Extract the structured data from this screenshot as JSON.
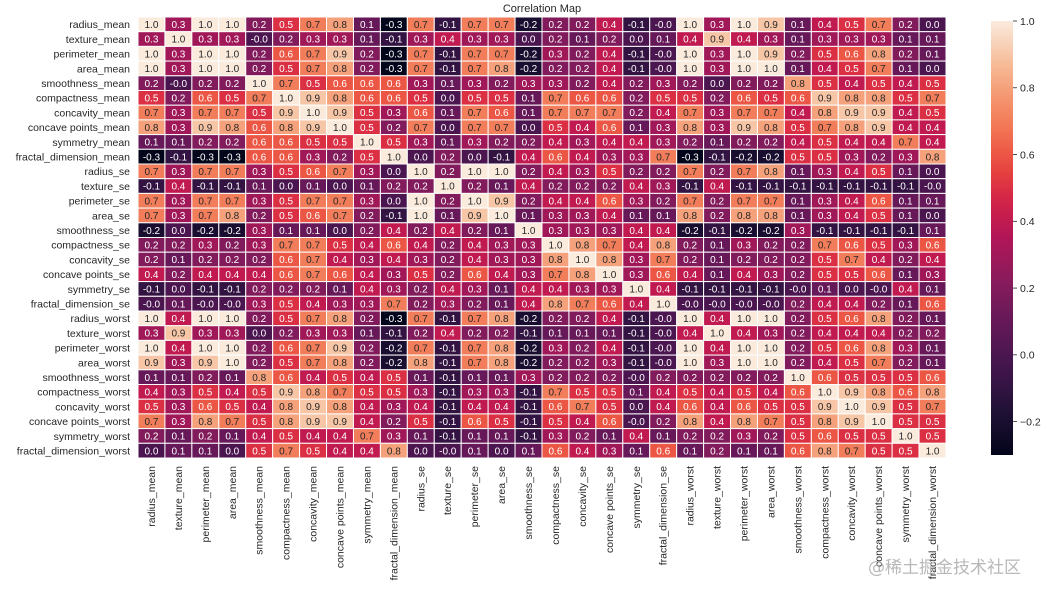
{
  "watermark": "@稀土掘金技术社区",
  "chart_data": {
    "type": "heatmap",
    "title": "Correlation Map",
    "xlabel": "",
    "ylabel": "",
    "annotate": true,
    "value_format": "0.1f",
    "colormap": "rocket",
    "colorbar": {
      "range": [
        -0.3,
        1.0
      ],
      "ticks": [
        -0.2,
        0.0,
        0.2,
        0.4,
        0.6,
        0.8,
        1.0
      ],
      "tick_labels": [
        "−0.2",
        "0.0",
        "0.2",
        "0.4",
        "0.6",
        "0.8",
        "1.0"
      ],
      "placement": "right"
    },
    "labels": [
      "radius_mean",
      "texture_mean",
      "perimeter_mean",
      "area_mean",
      "smoothness_mean",
      "compactness_mean",
      "concavity_mean",
      "concave points_mean",
      "symmetry_mean",
      "fractal_dimension_mean",
      "radius_se",
      "texture_se",
      "perimeter_se",
      "area_se",
      "smoothness_se",
      "compactness_se",
      "concavity_se",
      "concave points_se",
      "symmetry_se",
      "fractal_dimension_se",
      "radius_worst",
      "texture_worst",
      "perimeter_worst",
      "area_worst",
      "smoothness_worst",
      "compactness_worst",
      "concavity_worst",
      "concave points_worst",
      "symmetry_worst",
      "fractal_dimension_worst"
    ],
    "matrix": [
      [
        1.0,
        0.3,
        1.0,
        1.0,
        0.2,
        0.5,
        0.7,
        0.8,
        0.1,
        -0.3,
        0.7,
        -0.1,
        0.7,
        0.7,
        -0.2,
        0.2,
        0.2,
        0.4,
        -0.1,
        -0.0,
        1.0,
        0.3,
        1.0,
        0.9,
        0.1,
        0.4,
        0.5,
        0.7,
        0.2,
        0.0
      ],
      [
        0.3,
        1.0,
        0.3,
        0.3,
        -0.0,
        0.2,
        0.3,
        0.3,
        0.1,
        -0.1,
        0.3,
        0.4,
        0.3,
        0.3,
        0.0,
        0.2,
        0.1,
        0.2,
        0.0,
        0.1,
        0.4,
        0.9,
        0.4,
        0.3,
        0.1,
        0.3,
        0.3,
        0.3,
        0.1,
        0.1
      ],
      [
        1.0,
        0.3,
        1.0,
        1.0,
        0.2,
        0.6,
        0.7,
        0.9,
        0.2,
        -0.3,
        0.7,
        -0.1,
        0.7,
        0.7,
        -0.2,
        0.3,
        0.2,
        0.4,
        -0.1,
        -0.0,
        1.0,
        0.3,
        1.0,
        0.9,
        0.2,
        0.5,
        0.6,
        0.8,
        0.2,
        0.1
      ],
      [
        1.0,
        0.3,
        1.0,
        1.0,
        0.2,
        0.5,
        0.7,
        0.8,
        0.2,
        -0.3,
        0.7,
        -0.1,
        0.7,
        0.8,
        -0.2,
        0.2,
        0.2,
        0.4,
        -0.1,
        -0.0,
        1.0,
        0.3,
        1.0,
        1.0,
        0.1,
        0.4,
        0.5,
        0.7,
        0.1,
        0.0
      ],
      [
        0.2,
        -0.0,
        0.2,
        0.2,
        1.0,
        0.7,
        0.5,
        0.6,
        0.6,
        0.6,
        0.3,
        0.1,
        0.3,
        0.2,
        0.3,
        0.3,
        0.2,
        0.4,
        0.2,
        0.3,
        0.2,
        0.0,
        0.2,
        0.2,
        0.8,
        0.5,
        0.4,
        0.5,
        0.4,
        0.5
      ],
      [
        0.5,
        0.2,
        0.6,
        0.5,
        0.7,
        1.0,
        0.9,
        0.8,
        0.6,
        0.6,
        0.5,
        0.0,
        0.5,
        0.5,
        0.1,
        0.7,
        0.6,
        0.6,
        0.2,
        0.5,
        0.5,
        0.2,
        0.6,
        0.5,
        0.6,
        0.9,
        0.8,
        0.8,
        0.5,
        0.7
      ],
      [
        0.7,
        0.3,
        0.7,
        0.7,
        0.5,
        0.9,
        1.0,
        0.9,
        0.5,
        0.3,
        0.6,
        0.1,
        0.7,
        0.6,
        0.1,
        0.7,
        0.7,
        0.7,
        0.2,
        0.4,
        0.7,
        0.3,
        0.7,
        0.7,
        0.4,
        0.8,
        0.9,
        0.9,
        0.4,
        0.5
      ],
      [
        0.8,
        0.3,
        0.9,
        0.8,
        0.6,
        0.8,
        0.9,
        1.0,
        0.5,
        0.2,
        0.7,
        0.0,
        0.7,
        0.7,
        0.0,
        0.5,
        0.4,
        0.6,
        0.1,
        0.3,
        0.8,
        0.3,
        0.9,
        0.8,
        0.5,
        0.7,
        0.8,
        0.9,
        0.4,
        0.4
      ],
      [
        0.1,
        0.1,
        0.2,
        0.2,
        0.6,
        0.6,
        0.5,
        0.5,
        1.0,
        0.5,
        0.3,
        0.1,
        0.3,
        0.2,
        0.2,
        0.4,
        0.3,
        0.4,
        0.4,
        0.3,
        0.2,
        0.1,
        0.2,
        0.2,
        0.4,
        0.5,
        0.4,
        0.4,
        0.7,
        0.4
      ],
      [
        -0.3,
        -0.1,
        -0.3,
        -0.3,
        0.6,
        0.6,
        0.3,
        0.2,
        0.5,
        1.0,
        0.0,
        0.2,
        0.0,
        -0.1,
        0.4,
        0.6,
        0.4,
        0.3,
        0.3,
        0.7,
        -0.3,
        -0.1,
        -0.2,
        -0.2,
        0.5,
        0.5,
        0.3,
        0.2,
        0.3,
        0.8
      ],
      [
        0.7,
        0.3,
        0.7,
        0.7,
        0.3,
        0.5,
        0.6,
        0.7,
        0.3,
        0.0,
        1.0,
        0.2,
        1.0,
        1.0,
        0.2,
        0.4,
        0.3,
        0.5,
        0.2,
        0.2,
        0.7,
        0.2,
        0.7,
        0.8,
        0.1,
        0.3,
        0.4,
        0.5,
        0.1,
        0.0
      ],
      [
        -0.1,
        0.4,
        -0.1,
        -0.1,
        0.1,
        0.0,
        0.1,
        0.0,
        0.1,
        0.2,
        0.2,
        1.0,
        0.2,
        0.1,
        0.4,
        0.2,
        0.2,
        0.2,
        0.4,
        0.3,
        -0.1,
        0.4,
        -0.1,
        -0.1,
        -0.1,
        -0.1,
        -0.1,
        -0.1,
        -0.1,
        -0.0
      ],
      [
        0.7,
        0.3,
        0.7,
        0.7,
        0.3,
        0.5,
        0.7,
        0.7,
        0.3,
        0.0,
        1.0,
        0.2,
        1.0,
        0.9,
        0.2,
        0.4,
        0.4,
        0.6,
        0.3,
        0.2,
        0.7,
        0.2,
        0.7,
        0.7,
        0.1,
        0.3,
        0.4,
        0.6,
        0.1,
        0.1
      ],
      [
        0.7,
        0.3,
        0.7,
        0.8,
        0.2,
        0.5,
        0.6,
        0.7,
        0.2,
        -0.1,
        1.0,
        0.1,
        0.9,
        1.0,
        0.1,
        0.3,
        0.3,
        0.4,
        0.1,
        0.1,
        0.8,
        0.2,
        0.8,
        0.8,
        0.1,
        0.3,
        0.4,
        0.5,
        0.1,
        0.0
      ],
      [
        -0.2,
        0.0,
        -0.2,
        -0.2,
        0.3,
        0.1,
        0.1,
        0.0,
        0.2,
        0.4,
        0.2,
        0.4,
        0.2,
        0.1,
        1.0,
        0.3,
        0.3,
        0.3,
        0.4,
        0.4,
        -0.2,
        -0.1,
        -0.2,
        -0.2,
        0.3,
        -0.1,
        -0.1,
        -0.1,
        -0.1,
        0.1
      ],
      [
        0.2,
        0.2,
        0.3,
        0.2,
        0.3,
        0.7,
        0.7,
        0.5,
        0.4,
        0.6,
        0.4,
        0.2,
        0.4,
        0.3,
        0.3,
        1.0,
        0.8,
        0.7,
        0.4,
        0.8,
        0.2,
        0.1,
        0.3,
        0.2,
        0.2,
        0.7,
        0.6,
        0.5,
        0.3,
        0.6
      ],
      [
        0.2,
        0.1,
        0.2,
        0.2,
        0.2,
        0.6,
        0.7,
        0.4,
        0.3,
        0.4,
        0.3,
        0.2,
        0.4,
        0.3,
        0.3,
        0.8,
        1.0,
        0.8,
        0.3,
        0.7,
        0.2,
        0.1,
        0.2,
        0.2,
        0.2,
        0.5,
        0.7,
        0.4,
        0.2,
        0.4
      ],
      [
        0.4,
        0.2,
        0.4,
        0.4,
        0.4,
        0.6,
        0.7,
        0.6,
        0.4,
        0.3,
        0.5,
        0.2,
        0.6,
        0.4,
        0.3,
        0.7,
        0.8,
        1.0,
        0.3,
        0.6,
        0.4,
        0.1,
        0.4,
        0.3,
        0.2,
        0.5,
        0.5,
        0.6,
        0.1,
        0.3
      ],
      [
        -0.1,
        0.0,
        -0.1,
        -0.1,
        0.2,
        0.2,
        0.2,
        0.1,
        0.4,
        0.3,
        0.2,
        0.4,
        0.3,
        0.1,
        0.4,
        0.4,
        0.3,
        0.3,
        1.0,
        0.4,
        -0.1,
        -0.1,
        -0.1,
        -0.1,
        -0.0,
        0.1,
        0.0,
        -0.0,
        0.4,
        0.1
      ],
      [
        -0.0,
        0.1,
        -0.0,
        -0.0,
        0.3,
        0.5,
        0.4,
        0.3,
        0.3,
        0.7,
        0.2,
        0.3,
        0.2,
        0.1,
        0.4,
        0.8,
        0.7,
        0.6,
        0.4,
        1.0,
        -0.0,
        -0.0,
        -0.0,
        -0.0,
        0.2,
        0.4,
        0.4,
        0.2,
        0.1,
        0.6
      ],
      [
        1.0,
        0.4,
        1.0,
        1.0,
        0.2,
        0.5,
        0.7,
        0.8,
        0.2,
        -0.3,
        0.7,
        -0.1,
        0.7,
        0.8,
        -0.2,
        0.2,
        0.2,
        0.4,
        -0.1,
        -0.0,
        1.0,
        0.4,
        1.0,
        1.0,
        0.2,
        0.5,
        0.6,
        0.8,
        0.2,
        0.1
      ],
      [
        0.3,
        0.9,
        0.3,
        0.3,
        0.0,
        0.2,
        0.3,
        0.3,
        0.1,
        -0.1,
        0.2,
        0.4,
        0.2,
        0.2,
        -0.1,
        0.1,
        0.1,
        0.1,
        -0.1,
        -0.0,
        0.4,
        1.0,
        0.4,
        0.3,
        0.2,
        0.4,
        0.4,
        0.4,
        0.2,
        0.2
      ],
      [
        1.0,
        0.4,
        1.0,
        1.0,
        0.2,
        0.6,
        0.7,
        0.9,
        0.2,
        -0.2,
        0.7,
        -0.1,
        0.7,
        0.8,
        -0.2,
        0.3,
        0.2,
        0.4,
        -0.1,
        -0.0,
        1.0,
        0.4,
        1.0,
        1.0,
        0.2,
        0.5,
        0.6,
        0.8,
        0.3,
        0.1
      ],
      [
        0.9,
        0.3,
        0.9,
        1.0,
        0.2,
        0.5,
        0.7,
        0.8,
        0.2,
        -0.2,
        0.8,
        -0.1,
        0.7,
        0.8,
        -0.2,
        0.2,
        0.2,
        0.3,
        -0.1,
        -0.0,
        1.0,
        0.3,
        1.0,
        1.0,
        0.2,
        0.4,
        0.5,
        0.7,
        0.2,
        0.1
      ],
      [
        0.1,
        0.1,
        0.2,
        0.1,
        0.8,
        0.6,
        0.4,
        0.5,
        0.4,
        0.5,
        0.1,
        -0.1,
        0.1,
        0.1,
        0.3,
        0.2,
        0.2,
        0.2,
        -0.0,
        0.2,
        0.2,
        0.2,
        0.2,
        0.2,
        1.0,
        0.6,
        0.5,
        0.5,
        0.5,
        0.6
      ],
      [
        0.4,
        0.3,
        0.5,
        0.4,
        0.5,
        0.9,
        0.8,
        0.7,
        0.5,
        0.5,
        0.3,
        -0.1,
        0.3,
        0.3,
        -0.1,
        0.7,
        0.5,
        0.5,
        0.1,
        0.4,
        0.5,
        0.4,
        0.5,
        0.4,
        0.6,
        1.0,
        0.9,
        0.8,
        0.6,
        0.8
      ],
      [
        0.5,
        0.3,
        0.6,
        0.5,
        0.4,
        0.8,
        0.9,
        0.8,
        0.4,
        0.3,
        0.4,
        -0.1,
        0.4,
        0.4,
        -0.1,
        0.6,
        0.7,
        0.5,
        0.0,
        0.4,
        0.6,
        0.4,
        0.6,
        0.5,
        0.5,
        0.9,
        1.0,
        0.9,
        0.5,
        0.7
      ],
      [
        0.7,
        0.3,
        0.8,
        0.7,
        0.5,
        0.8,
        0.9,
        0.9,
        0.4,
        0.2,
        0.5,
        -0.1,
        0.6,
        0.5,
        -0.1,
        0.5,
        0.4,
        0.6,
        -0.0,
        0.2,
        0.8,
        0.4,
        0.8,
        0.7,
        0.5,
        0.8,
        0.9,
        1.0,
        0.5,
        0.5
      ],
      [
        0.2,
        0.1,
        0.2,
        0.1,
        0.4,
        0.5,
        0.4,
        0.4,
        0.7,
        0.3,
        0.1,
        -0.1,
        0.1,
        0.1,
        -0.1,
        0.3,
        0.2,
        0.1,
        0.4,
        0.1,
        0.2,
        0.2,
        0.3,
        0.2,
        0.5,
        0.6,
        0.5,
        0.5,
        1.0,
        0.5
      ],
      [
        0.0,
        0.1,
        0.1,
        0.0,
        0.5,
        0.7,
        0.5,
        0.4,
        0.4,
        0.8,
        0.0,
        -0.0,
        0.1,
        0.0,
        0.1,
        0.6,
        0.4,
        0.3,
        0.1,
        0.6,
        0.1,
        0.2,
        0.1,
        0.1,
        0.6,
        0.8,
        0.7,
        0.5,
        0.5,
        1.0
      ]
    ]
  }
}
